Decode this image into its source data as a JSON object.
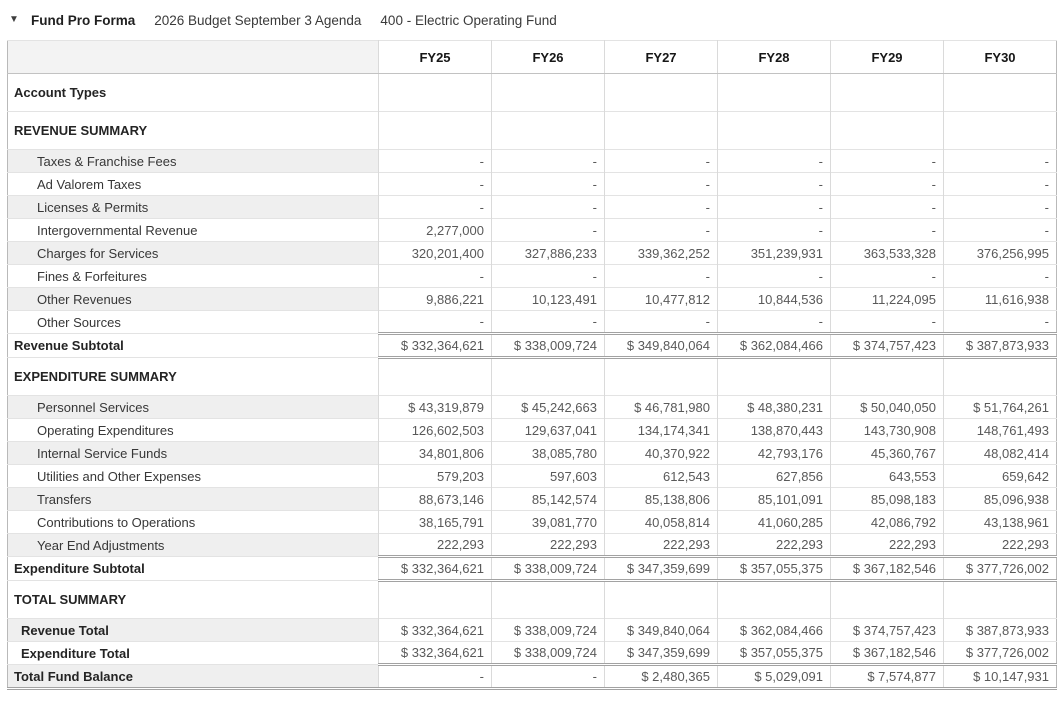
{
  "header": {
    "collapse_icon": "▼",
    "title": "Fund Pro Forma",
    "subtitle_budget": "2026 Budget September 3 Agenda",
    "subtitle_fund": "400 - Electric Operating Fund"
  },
  "table": {
    "columns": [
      "FY25",
      "FY26",
      "FY27",
      "FY28",
      "FY29",
      "FY30"
    ],
    "rows": [
      {
        "label": "Account Types",
        "type": "section"
      },
      {
        "label": "REVENUE SUMMARY",
        "type": "section"
      },
      {
        "label": "Taxes & Franchise Fees",
        "type": "detail",
        "shade": true,
        "values": [
          "-",
          "-",
          "-",
          "-",
          "-",
          "-"
        ]
      },
      {
        "label": "Ad Valorem Taxes",
        "type": "detail",
        "shade": false,
        "values": [
          "-",
          "-",
          "-",
          "-",
          "-",
          "-"
        ]
      },
      {
        "label": "Licenses & Permits",
        "type": "detail",
        "shade": true,
        "values": [
          "-",
          "-",
          "-",
          "-",
          "-",
          "-"
        ]
      },
      {
        "label": "Intergovernmental Revenue",
        "type": "detail",
        "shade": false,
        "values": [
          "2,277,000",
          "-",
          "-",
          "-",
          "-",
          "-"
        ]
      },
      {
        "label": "Charges for Services",
        "type": "detail",
        "shade": true,
        "values": [
          "320,201,400",
          "327,886,233",
          "339,362,252",
          "351,239,931",
          "363,533,328",
          "376,256,995"
        ]
      },
      {
        "label": "Fines & Forfeitures",
        "type": "detail",
        "shade": false,
        "values": [
          "-",
          "-",
          "-",
          "-",
          "-",
          "-"
        ]
      },
      {
        "label": "Other Revenues",
        "type": "detail",
        "shade": true,
        "values": [
          "9,886,221",
          "10,123,491",
          "10,477,812",
          "10,844,536",
          "11,224,095",
          "11,616,938"
        ]
      },
      {
        "label": "Other Sources",
        "type": "detail",
        "shade": false,
        "values": [
          "-",
          "-",
          "-",
          "-",
          "-",
          "-"
        ]
      },
      {
        "label": "Revenue Subtotal",
        "type": "subtotal",
        "shade": false,
        "values": [
          "$ 332,364,621",
          "$ 338,009,724",
          "$ 349,840,064",
          "$ 362,084,466",
          "$ 374,757,423",
          "$ 387,873,933"
        ]
      },
      {
        "label": "EXPENDITURE SUMMARY",
        "type": "section"
      },
      {
        "label": "Personnel Services",
        "type": "detail",
        "shade": true,
        "values": [
          "$ 43,319,879",
          "$ 45,242,663",
          "$ 46,781,980",
          "$ 48,380,231",
          "$ 50,040,050",
          "$ 51,764,261"
        ]
      },
      {
        "label": "Operating Expenditures",
        "type": "detail",
        "shade": false,
        "values": [
          "126,602,503",
          "129,637,041",
          "134,174,341",
          "138,870,443",
          "143,730,908",
          "148,761,493"
        ]
      },
      {
        "label": "Internal Service Funds",
        "type": "detail",
        "shade": true,
        "values": [
          "34,801,806",
          "38,085,780",
          "40,370,922",
          "42,793,176",
          "45,360,767",
          "48,082,414"
        ]
      },
      {
        "label": "Utilities and Other Expenses",
        "type": "detail",
        "shade": false,
        "values": [
          "579,203",
          "597,603",
          "612,543",
          "627,856",
          "643,553",
          "659,642"
        ]
      },
      {
        "label": "Transfers",
        "type": "detail",
        "shade": true,
        "values": [
          "88,673,146",
          "85,142,574",
          "85,138,806",
          "85,101,091",
          "85,098,183",
          "85,096,938"
        ]
      },
      {
        "label": "Contributions to Operations",
        "type": "detail",
        "shade": false,
        "values": [
          "38,165,791",
          "39,081,770",
          "40,058,814",
          "41,060,285",
          "42,086,792",
          "43,138,961"
        ]
      },
      {
        "label": "Year End Adjustments",
        "type": "detail",
        "shade": true,
        "values": [
          "222,293",
          "222,293",
          "222,293",
          "222,293",
          "222,293",
          "222,293"
        ]
      },
      {
        "label": "Expenditure Subtotal",
        "type": "subtotal",
        "shade": false,
        "values": [
          "$ 332,364,621",
          "$ 338,009,724",
          "$ 347,359,699",
          "$ 357,055,375",
          "$ 367,182,546",
          "$ 377,726,002"
        ]
      },
      {
        "label": "TOTAL SUMMARY",
        "type": "section"
      },
      {
        "label": "Revenue Total",
        "type": "total",
        "shade": true,
        "values": [
          "$ 332,364,621",
          "$ 338,009,724",
          "$ 349,840,064",
          "$ 362,084,466",
          "$ 374,757,423",
          "$ 387,873,933"
        ]
      },
      {
        "label": "Expenditure Total",
        "type": "total",
        "shade": false,
        "values": [
          "$ 332,364,621",
          "$ 338,009,724",
          "$ 347,359,699",
          "$ 357,055,375",
          "$ 367,182,546",
          "$ 377,726,002"
        ]
      },
      {
        "label": "Total Fund Balance",
        "type": "grandtotal",
        "shade": true,
        "values": [
          "-",
          "-",
          "$ 2,480,365",
          "$ 5,029,091",
          "$ 7,574,877",
          "$ 10,147,931"
        ]
      }
    ]
  }
}
